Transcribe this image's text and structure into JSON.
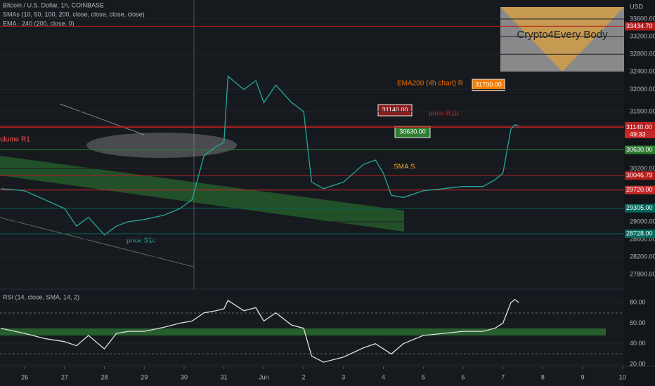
{
  "header": {
    "title": "Bitcoin / U.S. Dollar, 1h, COINBASE",
    "indicators": [
      "SMAs (10, 50, 100, 200, close, close, close, close)",
      "EMA · 240 (200, close, 0)"
    ],
    "currency": "USD",
    "countdown": "49:33",
    "watermark": "Crypto4Every Body"
  },
  "annotations": [
    "EMA200 (4h chart) R",
    "price R1b",
    "SMA S",
    "price S1c",
    "olume R1",
    "31140.00",
    "30630.00",
    "31700.00"
  ],
  "chart_data": [
    {
      "type": "line",
      "x": [
        -0.6,
        0,
        0.5,
        1,
        1.3,
        1.6,
        2,
        2.3,
        2.6,
        3,
        3.5,
        3.9,
        4.2,
        4.5,
        4.8,
        5,
        5.1,
        5.5,
        5.8,
        6,
        6.3,
        6.7,
        7,
        7.2,
        7.5,
        8,
        8.5,
        8.8,
        9,
        9.2,
        9.5,
        10,
        10.5,
        11,
        11.5,
        11.8,
        12,
        12.2,
        12.3,
        12.4
      ],
      "xlim": [
        -0.62,
        15.04
      ],
      "xticks": [
        {
          "value": 0,
          "label": "26"
        },
        {
          "value": 1,
          "label": "27"
        },
        {
          "value": 2,
          "label": "28"
        },
        {
          "value": 3,
          "label": "29"
        },
        {
          "value": 4,
          "label": "30"
        },
        {
          "value": 5,
          "label": "31"
        },
        {
          "value": 6,
          "label": "Jun"
        },
        {
          "value": 7,
          "label": "2"
        },
        {
          "value": 8,
          "label": "3"
        },
        {
          "value": 9,
          "label": "4"
        },
        {
          "value": 10,
          "label": "5"
        },
        {
          "value": 11,
          "label": "6"
        },
        {
          "value": 12,
          "label": "7"
        },
        {
          "value": 13,
          "label": "8"
        },
        {
          "value": 14,
          "label": "9"
        },
        {
          "value": 15,
          "label": "10"
        }
      ],
      "ylim": [
        27470,
        34030
      ],
      "yticks": [
        {
          "value": 33600,
          "label": "33600.00"
        },
        {
          "value": 33200,
          "label": "33200.00"
        },
        {
          "value": 32800,
          "label": "32800.00"
        },
        {
          "value": 32400,
          "label": "32400.00"
        },
        {
          "value": 32000,
          "label": "32000.00"
        },
        {
          "value": 31500,
          "label": "31500.00"
        },
        {
          "value": 30200,
          "label": "30200.00"
        },
        {
          "value": 29000,
          "label": "29000.00"
        },
        {
          "value": 28600,
          "label": "28600.00"
        },
        {
          "value": 28200,
          "label": "28200.00"
        },
        {
          "value": 27800,
          "label": "27800.00"
        }
      ],
      "series": [
        {
          "color": "#26a69a",
          "values": [
            29750,
            29700,
            29500,
            29300,
            28900,
            29100,
            28700,
            28900,
            29000,
            29050,
            29150,
            29300,
            29500,
            30500,
            30700,
            30800,
            32300,
            32000,
            32200,
            31700,
            32100,
            31700,
            31500,
            29900,
            29750,
            29900,
            30300,
            30400,
            30100,
            29600,
            29550,
            29700,
            29750,
            29800,
            29800,
            29950,
            30100,
            31100,
            31200,
            31165.69
          ]
        },
        {
          "color": "#e65100",
          "values": [
            33300,
            null,
            null,
            null,
            null,
            null,
            33000,
            null,
            null,
            null,
            null,
            null,
            32600,
            null,
            null,
            null,
            null,
            null,
            null,
            32300,
            null,
            null,
            null,
            null,
            null,
            32100,
            null,
            null,
            null,
            null,
            null,
            31900,
            null,
            null,
            null,
            null,
            31750,
            null,
            null,
            null
          ]
        },
        {
          "color": "#f9a825",
          "values": [
            29550,
            null,
            null,
            29450,
            null,
            null,
            29400,
            null,
            null,
            29350,
            null,
            null,
            29500,
            null,
            null,
            29800,
            null,
            null,
            null,
            29950,
            null,
            null,
            30050,
            null,
            null,
            30150,
            null,
            null,
            30200,
            null,
            null,
            30250,
            null,
            30300,
            null,
            null,
            30400,
            null,
            null,
            30450
          ]
        }
      ],
      "levels": [
        {
          "value": 33434.7,
          "label": "33434.70",
          "color": "#b71c1c"
        },
        {
          "value": 31165.69,
          "label": "31165.69",
          "color": "#c62828"
        },
        {
          "value": 31140,
          "label": "31140.00",
          "color": "#b71c1c"
        },
        {
          "value": 30630,
          "label": "30630.00",
          "color": "#2e7d32"
        },
        {
          "value": 30046.79,
          "label": "30046.79",
          "color": "#b71c1c"
        },
        {
          "value": 29720,
          "label": "29720.00",
          "color": "#c62828"
        },
        {
          "value": 29305,
          "label": "29305.00",
          "color": "#00695c"
        },
        {
          "value": 28728,
          "label": "28728.00",
          "color": "#00695c"
        }
      ]
    },
    {
      "type": "line",
      "title": "RSI (14, close, SMA, 14, 2)",
      "x": [
        -0.6,
        0,
        0.5,
        1,
        1.3,
        1.6,
        2,
        2.3,
        2.6,
        3,
        3.5,
        3.9,
        4.2,
        4.5,
        4.8,
        5,
        5.1,
        5.5,
        5.8,
        6,
        6.3,
        6.7,
        7,
        7.2,
        7.5,
        8,
        8.5,
        8.8,
        9,
        9.2,
        9.5,
        10,
        10.5,
        11,
        11.5,
        11.8,
        12,
        12.2,
        12.3,
        12.4
      ],
      "xlim": [
        -0.62,
        15.04
      ],
      "ylim": [
        18,
        93
      ],
      "yticks": [
        {
          "value": 80,
          "label": "80.00"
        },
        {
          "value": 60,
          "label": "60.00"
        },
        {
          "value": 40,
          "label": "40.00"
        },
        {
          "value": 20,
          "label": "20.00"
        }
      ],
      "series": [
        {
          "color": "#e0e0e0",
          "values": [
            55,
            50,
            45,
            42,
            38,
            48,
            35,
            50,
            52,
            52,
            56,
            60,
            62,
            70,
            72,
            74,
            82,
            72,
            75,
            62,
            70,
            58,
            55,
            28,
            22,
            27,
            36,
            40,
            35,
            30,
            40,
            48,
            50,
            52,
            52,
            55,
            60,
            80,
            83,
            80
          ]
        }
      ]
    }
  ]
}
